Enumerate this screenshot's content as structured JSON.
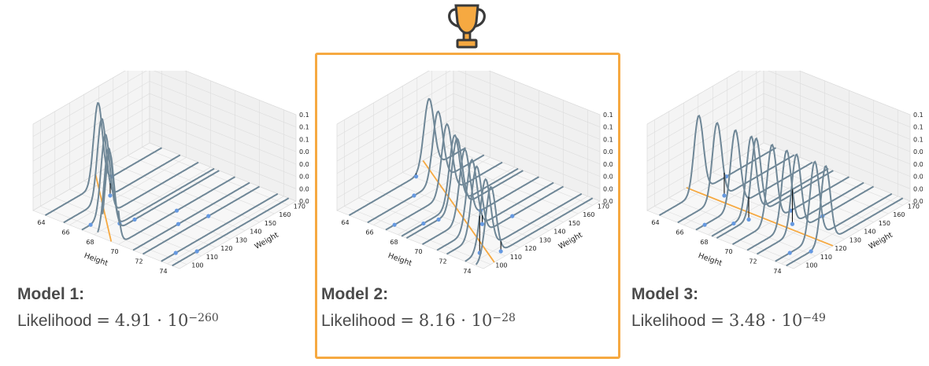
{
  "winner_index": 1,
  "colors": {
    "highlight": "#f6a941",
    "regression_line": "#f6a941",
    "curve": "#6f8797",
    "point": "#6699e0",
    "residual": "#000000"
  },
  "winner_icon": "trophy-icon",
  "panels": [
    {
      "title": "Model 1:",
      "likelihood_word": "Likelihood",
      "equals": "=",
      "value": "4.91 · 10",
      "exponent": "−260"
    },
    {
      "title": "Model 2:",
      "likelihood_word": "Likelihood",
      "equals": "=",
      "value": "8.16 · 10",
      "exponent": "−28"
    },
    {
      "title": "Model 3:",
      "likelihood_word": "Likelihood",
      "equals": "=",
      "value": "3.48 · 10",
      "exponent": "−49"
    }
  ],
  "chart_data": [
    {
      "type": "3d-line",
      "xlabel": "Height",
      "ylabel": "Weight",
      "x_ticks": [
        "64",
        "66",
        "68",
        "70",
        "72",
        "74"
      ],
      "y_ticks": [
        "100",
        "110",
        "120",
        "130",
        "140",
        "150",
        "160",
        "170"
      ],
      "z_ticks": [
        "0.00",
        "0.02",
        "0.04",
        "0.06",
        "0.08",
        "0.10",
        "0.12",
        "0.14"
      ],
      "xlim": [
        63,
        75
      ],
      "ylim": [
        95,
        175
      ],
      "zlim": [
        0,
        0.14
      ],
      "points": [
        [
          64,
          141
        ],
        [
          65.5,
          127
        ],
        [
          67,
          101
        ],
        [
          68.3,
          110
        ],
        [
          68.7,
          117
        ],
        [
          70,
          135
        ],
        [
          71.2,
          126
        ],
        [
          72,
          140
        ],
        [
          73.5,
          105
        ],
        [
          74.4,
          112
        ]
      ],
      "regression_line": {
        "intercept": 560,
        "slope": -6.7
      },
      "density_sd": 3.0,
      "grid": true
    },
    {
      "type": "3d-line",
      "xlabel": "Height",
      "ylabel": "Weight",
      "x_ticks": [
        "64",
        "66",
        "68",
        "70",
        "72",
        "74"
      ],
      "y_ticks": [
        "100",
        "110",
        "120",
        "130",
        "140",
        "150",
        "160",
        "170"
      ],
      "z_ticks": [
        "0.00",
        "0.02",
        "0.04",
        "0.06",
        "0.08",
        "0.10",
        "0.12",
        "0.14"
      ],
      "xlim": [
        63,
        75
      ],
      "ylim": [
        95,
        175
      ],
      "zlim": [
        0,
        0.14
      ],
      "points": [
        [
          64,
          141
        ],
        [
          65.5,
          127
        ],
        [
          67,
          101
        ],
        [
          68.3,
          110
        ],
        [
          68.7,
          117
        ],
        [
          70,
          135
        ],
        [
          71.2,
          126
        ],
        [
          72,
          140
        ],
        [
          73.5,
          105
        ],
        [
          74.4,
          112
        ]
      ],
      "regression_line": {
        "intercept": 425,
        "slope": -4.3
      },
      "density_sd": 3.5,
      "grid": true
    },
    {
      "type": "3d-line",
      "xlabel": "Height",
      "ylabel": "Weight",
      "x_ticks": [
        "64",
        "66",
        "68",
        "70",
        "72",
        "74"
      ],
      "y_ticks": [
        "100",
        "110",
        "120",
        "130",
        "140",
        "150",
        "160",
        "170"
      ],
      "z_ticks": [
        "0.00",
        "0.02",
        "0.04",
        "0.06",
        "0.08",
        "0.10",
        "0.12",
        "0.14"
      ],
      "xlim": [
        63,
        75
      ],
      "ylim": [
        95,
        175
      ],
      "zlim": [
        0,
        0.14
      ],
      "points": [
        [
          64,
          141
        ],
        [
          65.5,
          127
        ],
        [
          67,
          101
        ],
        [
          68.3,
          110
        ],
        [
          68.7,
          117
        ],
        [
          70,
          135
        ],
        [
          71.2,
          126
        ],
        [
          72,
          140
        ],
        [
          73.5,
          105
        ],
        [
          74.4,
          112
        ]
      ],
      "regression_line": {
        "intercept": 122,
        "slope": 0
      },
      "density_sd": 3.2,
      "grid": true
    }
  ]
}
